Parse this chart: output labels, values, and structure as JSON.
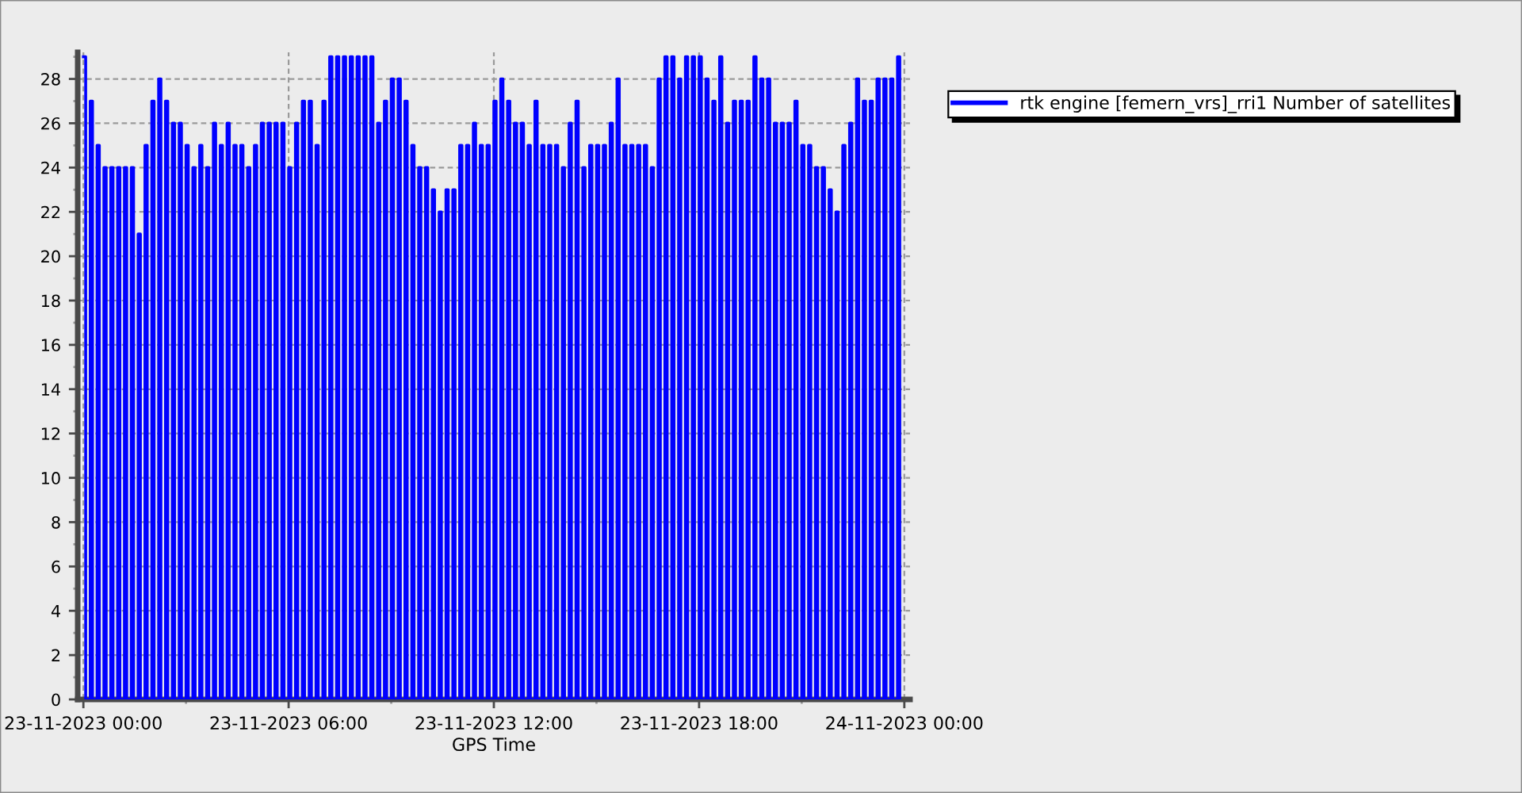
{
  "chart_data": {
    "type": "step",
    "xlabel": "GPS Time",
    "x": [
      "2023-11-23T00:00",
      "2023-11-23T00:04",
      "2023-11-23T00:12",
      "2023-11-23T00:16",
      "2023-11-23T00:24",
      "2023-11-23T00:28",
      "2023-11-23T00:36",
      "2023-11-23T00:40",
      "2023-11-23T00:48",
      "2023-11-23T00:52",
      "2023-11-23T01:00",
      "2023-11-23T01:04",
      "2023-11-23T01:12",
      "2023-11-23T01:16",
      "2023-11-23T01:24",
      "2023-11-23T01:28",
      "2023-11-23T01:36",
      "2023-11-23T01:40",
      "2023-11-23T01:48",
      "2023-11-23T01:52",
      "2023-11-23T02:00",
      "2023-11-23T02:04",
      "2023-11-23T02:12",
      "2023-11-23T02:16",
      "2023-11-23T02:24",
      "2023-11-23T02:28",
      "2023-11-23T02:36",
      "2023-11-23T02:40",
      "2023-11-23T02:48",
      "2023-11-23T02:52",
      "2023-11-23T03:00",
      "2023-11-23T03:04",
      "2023-11-23T03:12",
      "2023-11-23T03:16",
      "2023-11-23T03:24",
      "2023-11-23T03:28",
      "2023-11-23T03:36",
      "2023-11-23T03:40",
      "2023-11-23T03:48",
      "2023-11-23T03:52",
      "2023-11-23T04:00",
      "2023-11-23T04:04",
      "2023-11-23T04:12",
      "2023-11-23T04:16",
      "2023-11-23T04:24",
      "2023-11-23T04:28",
      "2023-11-23T04:36",
      "2023-11-23T04:40",
      "2023-11-23T04:48",
      "2023-11-23T04:52",
      "2023-11-23T05:00",
      "2023-11-23T05:04",
      "2023-11-23T05:12",
      "2023-11-23T05:16",
      "2023-11-23T05:24",
      "2023-11-23T05:28",
      "2023-11-23T05:36",
      "2023-11-23T05:40",
      "2023-11-23T05:48",
      "2023-11-23T05:52",
      "2023-11-23T06:00",
      "2023-11-23T06:04",
      "2023-11-23T06:12",
      "2023-11-23T06:16",
      "2023-11-23T06:24",
      "2023-11-23T06:28",
      "2023-11-23T06:36",
      "2023-11-23T06:40",
      "2023-11-23T06:48",
      "2023-11-23T06:52",
      "2023-11-23T07:00",
      "2023-11-23T07:04",
      "2023-11-23T07:12",
      "2023-11-23T07:16",
      "2023-11-23T07:24",
      "2023-11-23T07:28",
      "2023-11-23T07:36",
      "2023-11-23T07:40",
      "2023-11-23T07:48",
      "2023-11-23T07:52",
      "2023-11-23T08:00",
      "2023-11-23T08:04",
      "2023-11-23T08:12",
      "2023-11-23T08:16",
      "2023-11-23T08:24",
      "2023-11-23T08:28",
      "2023-11-23T08:36",
      "2023-11-23T08:40",
      "2023-11-23T08:48",
      "2023-11-23T08:52",
      "2023-11-23T09:00",
      "2023-11-23T09:04",
      "2023-11-23T09:12",
      "2023-11-23T09:16",
      "2023-11-23T09:24",
      "2023-11-23T09:28",
      "2023-11-23T09:36",
      "2023-11-23T09:40",
      "2023-11-23T09:48",
      "2023-11-23T09:52",
      "2023-11-23T10:00",
      "2023-11-23T10:04",
      "2023-11-23T10:12",
      "2023-11-23T10:16",
      "2023-11-23T10:24",
      "2023-11-23T10:28",
      "2023-11-23T10:36",
      "2023-11-23T10:40",
      "2023-11-23T10:48",
      "2023-11-23T10:52",
      "2023-11-23T11:00",
      "2023-11-23T11:04",
      "2023-11-23T11:12",
      "2023-11-23T11:16",
      "2023-11-23T11:24",
      "2023-11-23T11:28",
      "2023-11-23T11:36",
      "2023-11-23T11:40",
      "2023-11-23T11:48",
      "2023-11-23T11:52",
      "2023-11-23T12:00",
      "2023-11-23T12:04",
      "2023-11-23T12:12",
      "2023-11-23T12:16",
      "2023-11-23T12:24",
      "2023-11-23T12:28",
      "2023-11-23T12:36",
      "2023-11-23T12:40",
      "2023-11-23T12:48",
      "2023-11-23T12:52",
      "2023-11-23T13:00",
      "2023-11-23T13:04",
      "2023-11-23T13:12",
      "2023-11-23T13:16",
      "2023-11-23T13:24",
      "2023-11-23T13:28",
      "2023-11-23T13:36",
      "2023-11-23T13:40",
      "2023-11-23T13:48",
      "2023-11-23T13:52",
      "2023-11-23T14:00",
      "2023-11-23T14:04",
      "2023-11-23T14:12",
      "2023-11-23T14:16",
      "2023-11-23T14:24",
      "2023-11-23T14:28",
      "2023-11-23T14:36",
      "2023-11-23T14:40",
      "2023-11-23T14:48",
      "2023-11-23T14:52",
      "2023-11-23T15:00",
      "2023-11-23T15:04",
      "2023-11-23T15:12",
      "2023-11-23T15:16",
      "2023-11-23T15:24",
      "2023-11-23T15:28",
      "2023-11-23T15:36",
      "2023-11-23T15:40",
      "2023-11-23T15:48",
      "2023-11-23T15:52",
      "2023-11-23T16:00",
      "2023-11-23T16:04",
      "2023-11-23T16:12",
      "2023-11-23T16:16",
      "2023-11-23T16:24",
      "2023-11-23T16:28",
      "2023-11-23T16:36",
      "2023-11-23T16:40",
      "2023-11-23T16:48",
      "2023-11-23T16:52",
      "2023-11-23T17:00",
      "2023-11-23T17:04",
      "2023-11-23T17:12",
      "2023-11-23T17:16",
      "2023-11-23T17:24",
      "2023-11-23T17:28",
      "2023-11-23T17:36",
      "2023-11-23T17:40",
      "2023-11-23T17:48",
      "2023-11-23T17:52",
      "2023-11-23T18:00",
      "2023-11-23T18:04",
      "2023-11-23T18:12",
      "2023-11-23T18:16",
      "2023-11-23T18:24",
      "2023-11-23T18:28",
      "2023-11-23T18:36",
      "2023-11-23T18:40",
      "2023-11-23T18:48",
      "2023-11-23T18:52",
      "2023-11-23T19:00",
      "2023-11-23T19:04",
      "2023-11-23T19:12",
      "2023-11-23T19:16",
      "2023-11-23T19:24",
      "2023-11-23T19:28",
      "2023-11-23T19:36",
      "2023-11-23T19:40",
      "2023-11-23T19:48",
      "2023-11-23T19:52",
      "2023-11-23T20:00",
      "2023-11-23T20:04",
      "2023-11-23T20:12",
      "2023-11-23T20:16",
      "2023-11-23T20:24",
      "2023-11-23T20:28",
      "2023-11-23T20:36",
      "2023-11-23T20:40",
      "2023-11-23T20:48",
      "2023-11-23T20:52",
      "2023-11-23T21:00",
      "2023-11-23T21:04",
      "2023-11-23T21:12",
      "2023-11-23T21:16",
      "2023-11-23T21:24",
      "2023-11-23T21:28",
      "2023-11-23T21:36",
      "2023-11-23T21:40",
      "2023-11-23T21:48",
      "2023-11-23T21:52",
      "2023-11-23T22:00",
      "2023-11-23T22:04",
      "2023-11-23T22:12",
      "2023-11-23T22:16",
      "2023-11-23T22:24",
      "2023-11-23T22:28",
      "2023-11-23T22:36",
      "2023-11-23T22:40",
      "2023-11-23T22:48",
      "2023-11-23T22:52",
      "2023-11-23T23:00",
      "2023-11-23T23:04",
      "2023-11-23T23:12",
      "2023-11-23T23:16",
      "2023-11-23T23:24",
      "2023-11-23T23:28",
      "2023-11-23T23:36",
      "2023-11-23T23:40",
      "2023-11-23T23:48",
      "2023-11-23T23:52"
    ],
    "series": [
      {
        "name": "rtk engine [femern_vrs]_rri1 Number of satellites",
        "color": "#0000ff",
        "values": [
          29,
          0,
          27,
          0,
          25,
          0,
          24,
          0,
          24,
          0,
          24,
          0,
          24,
          0,
          24,
          0,
          21,
          0,
          25,
          0,
          27,
          0,
          28,
          0,
          27,
          0,
          26,
          0,
          26,
          0,
          25,
          0,
          24,
          0,
          25,
          0,
          24,
          0,
          26,
          0,
          25,
          0,
          26,
          0,
          25,
          0,
          25,
          0,
          24,
          0,
          25,
          0,
          26,
          0,
          26,
          0,
          26,
          0,
          26,
          0,
          24,
          0,
          26,
          0,
          27,
          0,
          27,
          0,
          25,
          0,
          27,
          0,
          29,
          0,
          29,
          0,
          29,
          0,
          29,
          0,
          29,
          0,
          29,
          0,
          29,
          0,
          26,
          0,
          27,
          0,
          28,
          0,
          28,
          0,
          27,
          0,
          25,
          0,
          24,
          0,
          24,
          0,
          23,
          0,
          22,
          0,
          23,
          0,
          23,
          0,
          25,
          0,
          25,
          0,
          26,
          0,
          25,
          0,
          25,
          0,
          27,
          0,
          28,
          0,
          27,
          0,
          26,
          0,
          26,
          0,
          25,
          0,
          27,
          0,
          25,
          0,
          25,
          0,
          25,
          0,
          24,
          0,
          26,
          0,
          27,
          0,
          24,
          0,
          25,
          0,
          25,
          0,
          25,
          0,
          26,
          0,
          28,
          0,
          25,
          0,
          25,
          0,
          25,
          0,
          25,
          0,
          24,
          0,
          28,
          0,
          29,
          0,
          29,
          0,
          28,
          0,
          29,
          0,
          29,
          0,
          29,
          0,
          28,
          0,
          27,
          0,
          29,
          0,
          26,
          0,
          27,
          0,
          27,
          0,
          27,
          0,
          29,
          0,
          28,
          0,
          28,
          0,
          26,
          0,
          26,
          0,
          26,
          0,
          27,
          0,
          25,
          0,
          25,
          0,
          24,
          0,
          24,
          0,
          23,
          0,
          22,
          0,
          25,
          0,
          26,
          0,
          28,
          0,
          27,
          0,
          27,
          0,
          28,
          0,
          28,
          0,
          28,
          0,
          29,
          0
        ]
      }
    ],
    "xlim": [
      "2023-11-22T23:50",
      "2023-11-24T00:10"
    ],
    "xticks": [
      {
        "value": "2023-11-23T00:00",
        "label": "23-11-2023 00:00"
      },
      {
        "value": "2023-11-23T06:00",
        "label": "23-11-2023 06:00"
      },
      {
        "value": "2023-11-23T12:00",
        "label": "23-11-2023 12:00"
      },
      {
        "value": "2023-11-23T18:00",
        "label": "23-11-2023 18:00"
      },
      {
        "value": "2023-11-24T00:00",
        "label": "24-11-2023 00:00"
      }
    ],
    "ylim": [
      0,
      29.2
    ],
    "yticks": [
      0,
      2,
      4,
      6,
      8,
      10,
      12,
      14,
      16,
      18,
      20,
      22,
      24,
      26,
      28
    ],
    "grid": true,
    "legend": "top right",
    "line_style": "solid"
  }
}
